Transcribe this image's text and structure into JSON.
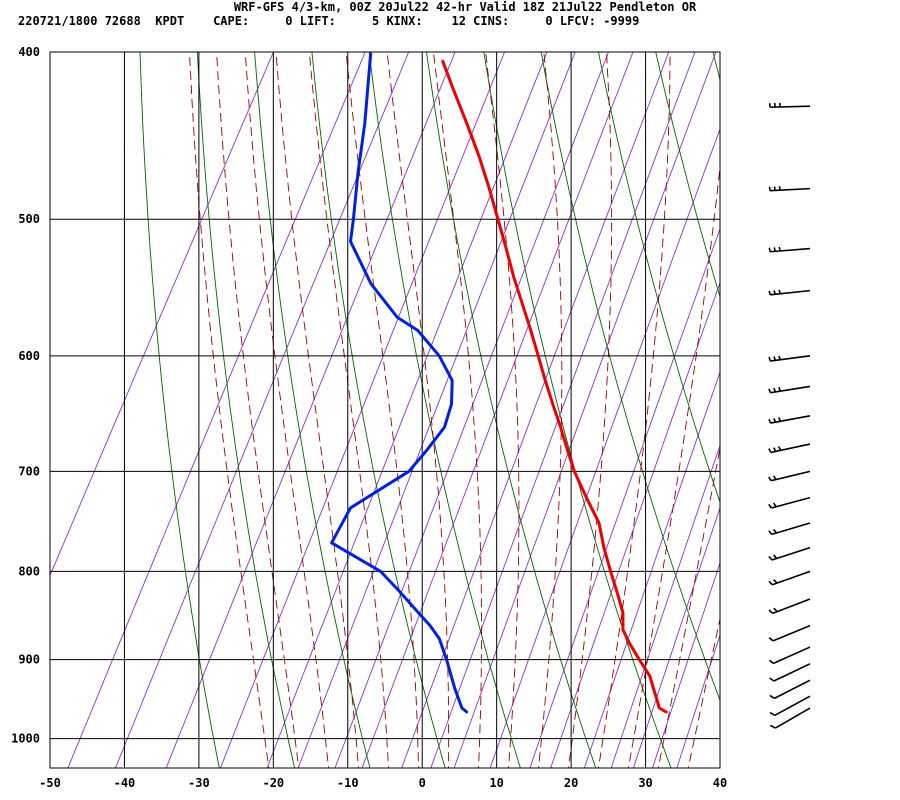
{
  "header": {
    "title": "WRF-GFS 4/3-km, 00Z 20Jul22 42-hr Valid 18Z 21Jul22 Pendleton OR",
    "indices": "220721/1800 72688  KPDT    CAPE:     0 LIFT:     5 KINX:    12 CINS:     0 LFCV: -9999"
  },
  "chart_data": {
    "type": "line",
    "title": "WRF-GFS 4/3-km, 00Z 20Jul22 42-hr Valid 18Z 21Jul22 Pendleton OR",
    "xlabel": "",
    "ylabel": "",
    "xlim": [
      -50,
      40
    ],
    "ylim": [
      1040,
      400
    ],
    "yscale": "log-pressure (skew-T)",
    "x_ticks": [
      "-50",
      "-40",
      "-30",
      "-20",
      "-10",
      "0",
      "10",
      "20",
      "30",
      "40"
    ],
    "y_ticks": [
      "400",
      "500",
      "600",
      "700",
      "800",
      "900",
      "1000"
    ],
    "grid": true,
    "colors": {
      "temperature": "#ee0000",
      "dewpoint": "#0022dd",
      "dry_adiabats": "#006600",
      "moist_adiabats": "#990000",
      "mixing_ratio": "#8833cc",
      "grid": "#000000"
    },
    "series": [
      {
        "role": "temperature",
        "pressure": [
          965,
          960,
          950,
          935,
          920,
          900,
          880,
          865,
          845,
          825,
          800,
          775,
          750,
          725,
          700,
          680,
          660,
          640,
          620,
          600,
          580,
          560,
          540,
          520,
          500,
          480,
          460,
          440,
          420,
          405
        ],
        "temperature": [
          29.0,
          27.8,
          27.0,
          25.7,
          24.4,
          21.9,
          19.4,
          17.7,
          16.5,
          14.6,
          12.1,
          9.6,
          7.3,
          3.9,
          0.5,
          -1.9,
          -4.3,
          -6.9,
          -9.5,
          -12.1,
          -14.8,
          -17.7,
          -20.7,
          -23.6,
          -26.7,
          -29.9,
          -33.4,
          -37.3,
          -41.5,
          -44.7
        ]
      },
      {
        "role": "dewpoint",
        "pressure": [
          965,
          960,
          935,
          900,
          875,
          860,
          845,
          820,
          800,
          770,
          735,
          700,
          680,
          660,
          640,
          620,
          600,
          580,
          570,
          545,
          515,
          500,
          470,
          440,
          400
        ],
        "dewpoint": [
          2.2,
          1.3,
          -1.0,
          -4.0,
          -6.4,
          -8.5,
          -11.0,
          -15.2,
          -18.8,
          -27.3,
          -27.1,
          -21.7,
          -20.7,
          -19.9,
          -20.5,
          -22.0,
          -25.4,
          -30.0,
          -33.6,
          -39.4,
          -45.0,
          -46.1,
          -48.6,
          -51.0,
          -55.0
        ]
      }
    ],
    "wind_barbs": {
      "pressure": [
        960,
        945,
        925,
        905,
        885,
        860,
        830,
        800,
        775,
        750,
        725,
        700,
        675,
        650,
        625,
        600,
        550,
        520,
        480,
        430
      ],
      "count": 20
    }
  }
}
